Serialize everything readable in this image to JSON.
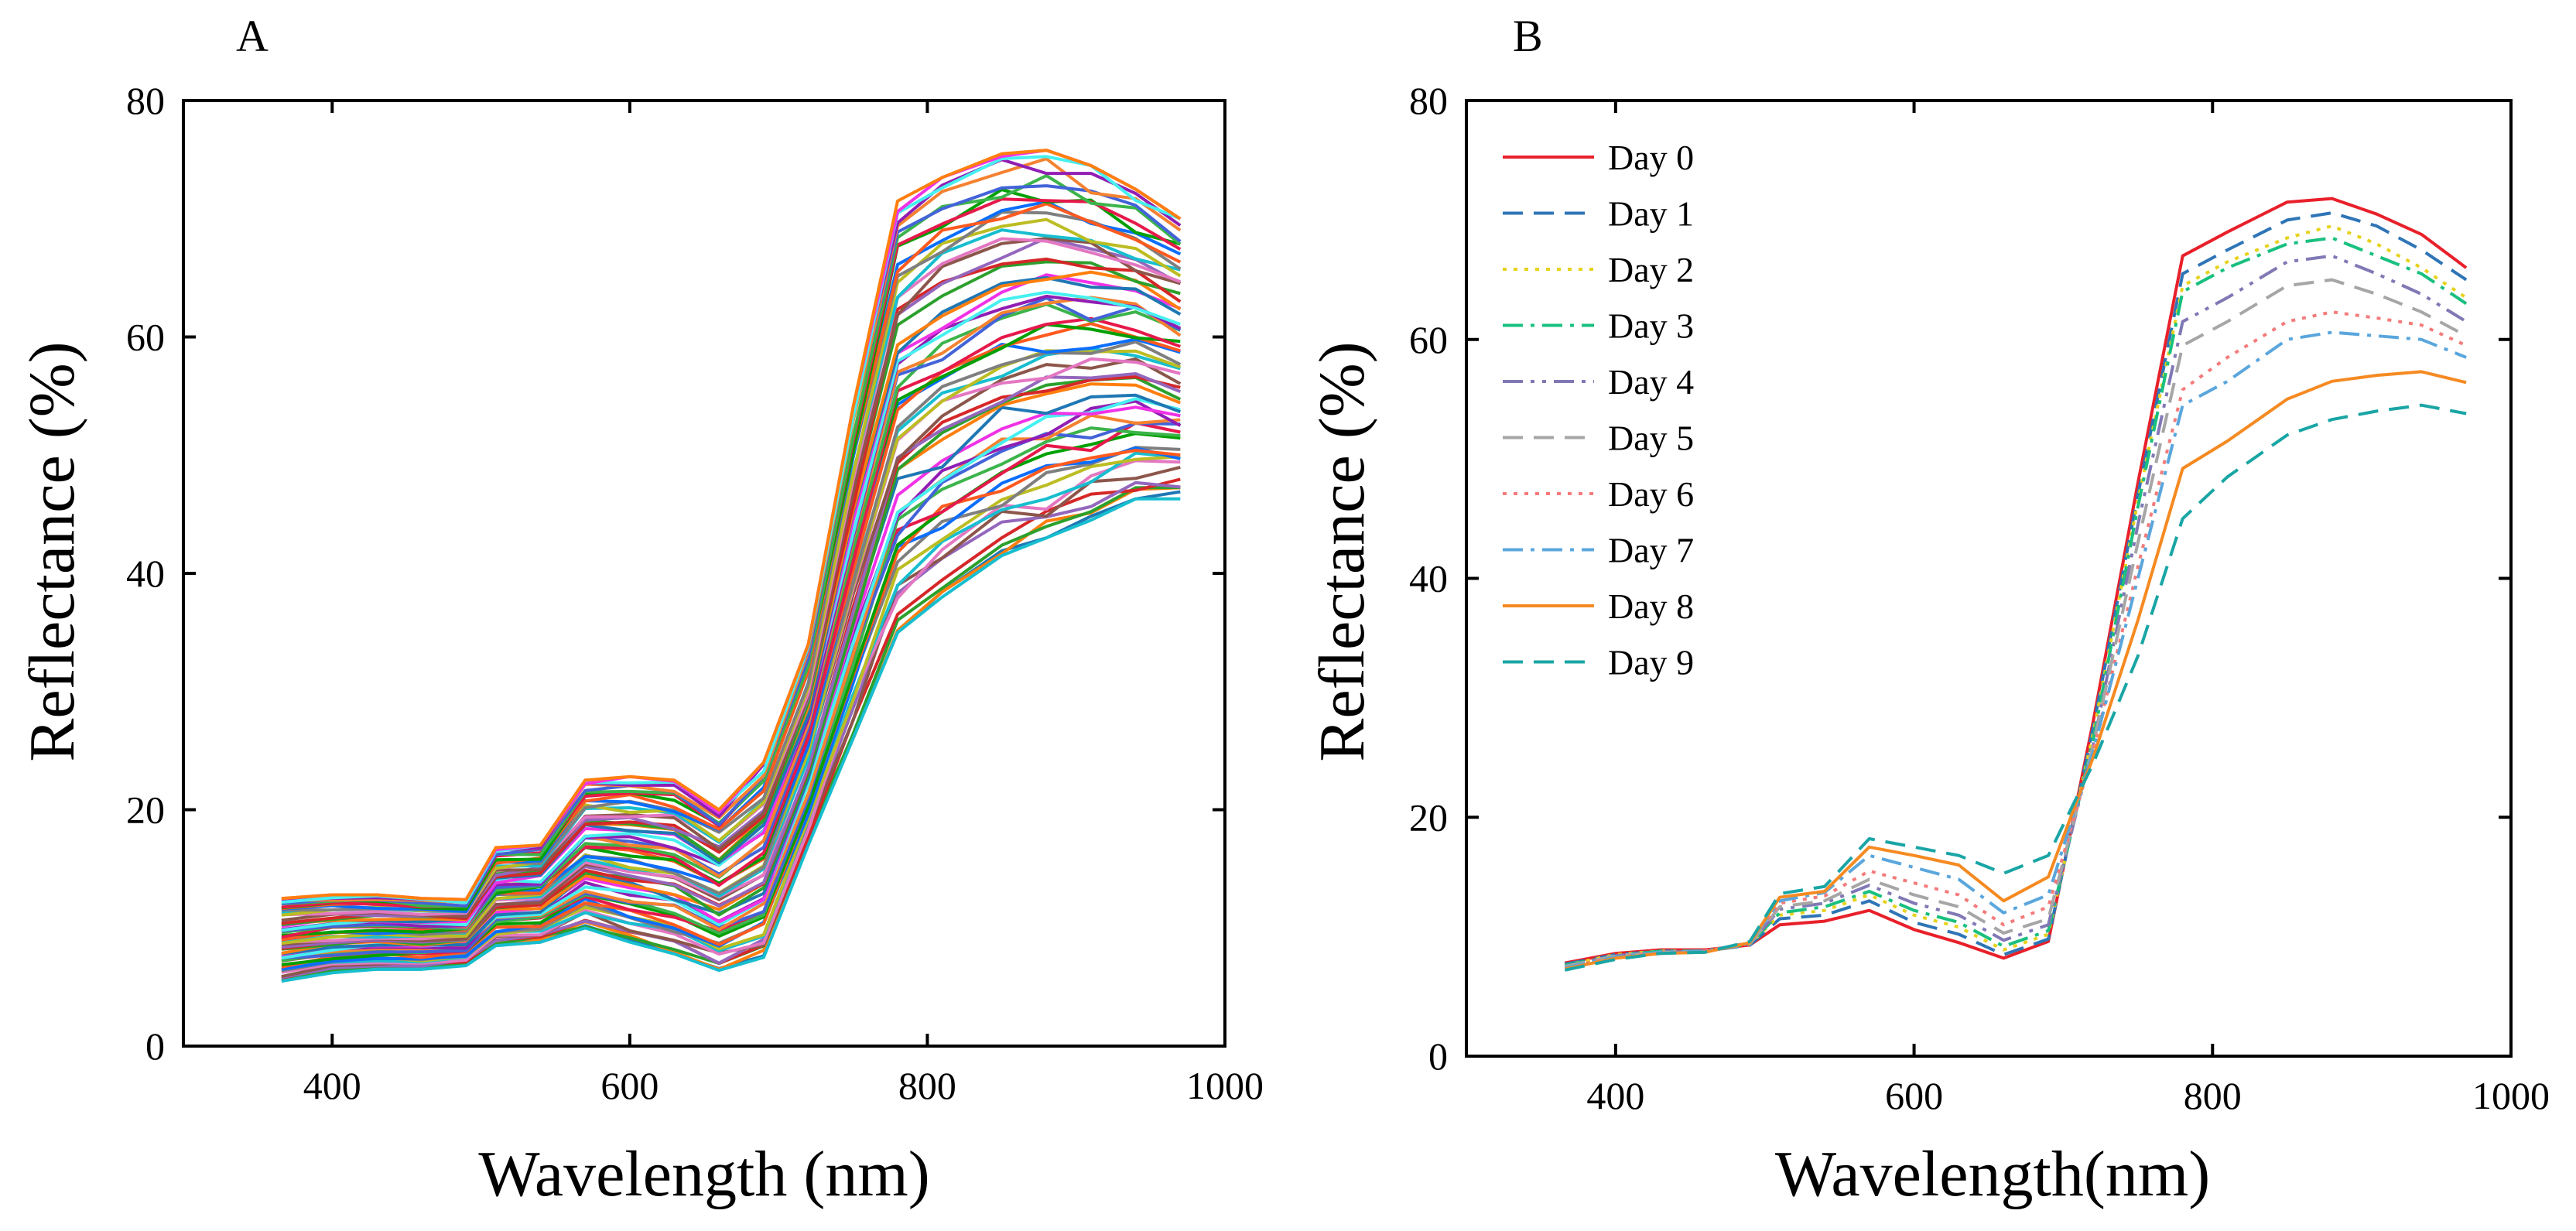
{
  "panel_a_letter": "A",
  "panel_b_letter": "B",
  "chart_data": [
    {
      "type": "line",
      "panel": "A",
      "xlabel": "Wavelength (nm)",
      "ylabel": "Reflectance (%)",
      "xlim": [
        300,
        1000
      ],
      "ylim": [
        0,
        80
      ],
      "xticks": [
        400,
        600,
        800,
        1000
      ],
      "yticks": [
        0,
        20,
        40,
        60,
        80
      ],
      "x": [
        366,
        400,
        430,
        460,
        490,
        510,
        540,
        570,
        600,
        630,
        660,
        690,
        720,
        750,
        780,
        810,
        850,
        880,
        910,
        940,
        970
      ],
      "envelope_upper": [
        12.5,
        12.8,
        12.8,
        12.5,
        12.4,
        16.8,
        17.0,
        22.5,
        22.8,
        22.5,
        20.0,
        24.0,
        34.0,
        54.0,
        71.5,
        73.5,
        75.5,
        75.8,
        74.5,
        72.5,
        70.0
      ],
      "envelope_lower": [
        5.5,
        6.2,
        6.5,
        6.5,
        6.8,
        8.5,
        8.8,
        10.0,
        8.8,
        7.8,
        6.4,
        7.5,
        17.0,
        26.0,
        35.0,
        38.0,
        41.5,
        43.0,
        44.5,
        46.3,
        46.3
      ],
      "series_count": 60,
      "palette": [
        "#1f77b4",
        "#ff7f0e",
        "#2ca02c",
        "#d62728",
        "#9467bd",
        "#8c564b",
        "#e377c2",
        "#17becf",
        "#bcbd22",
        "#7f7f7f",
        "#0b6efd",
        "#ff5a1f",
        "#00a000",
        "#e6194b",
        "#3cb44b",
        "#4363d8",
        "#f58231",
        "#911eb4",
        "#46f0f0",
        "#f032e6"
      ]
    },
    {
      "type": "line",
      "panel": "B",
      "xlabel": "Wavelength(nm)",
      "ylabel": "Reflectance (%)",
      "xlim": [
        300,
        1000
      ],
      "ylim": [
        0,
        80
      ],
      "xticks": [
        400,
        600,
        800,
        1000
      ],
      "yticks": [
        0,
        20,
        40,
        60,
        80
      ],
      "x": [
        366,
        400,
        430,
        460,
        490,
        510,
        540,
        570,
        600,
        630,
        660,
        690,
        720,
        750,
        780,
        810,
        850,
        880,
        910,
        940,
        970
      ],
      "legend_position": "top-left",
      "series": [
        {
          "name": "Day 0",
          "color": "#e8202a",
          "dash": "solid",
          "values": [
            7.8,
            8.6,
            8.9,
            8.9,
            9.3,
            11.0,
            11.3,
            12.2,
            10.6,
            9.5,
            8.2,
            9.6,
            28.0,
            48.0,
            67.0,
            69.0,
            71.5,
            71.8,
            70.5,
            68.8,
            66.0
          ]
        },
        {
          "name": "Day 1",
          "color": "#2e75b6",
          "dash": "dash",
          "values": [
            7.7,
            8.5,
            8.8,
            8.8,
            9.3,
            11.5,
            11.8,
            13.0,
            11.2,
            10.2,
            8.5,
            9.8,
            27.5,
            47.0,
            65.5,
            67.5,
            70.0,
            70.6,
            69.5,
            67.5,
            65.0
          ]
        },
        {
          "name": "Day 2",
          "color": "#e6d21c",
          "dash": "dot",
          "values": [
            7.6,
            8.5,
            8.8,
            8.8,
            9.4,
            11.8,
            12.2,
            13.5,
            11.8,
            10.8,
            8.9,
            10.2,
            27.0,
            46.5,
            64.5,
            66.5,
            68.5,
            69.5,
            68.0,
            66.0,
            63.5
          ]
        },
        {
          "name": "Day 3",
          "color": "#19c07f",
          "dash": "dashdot",
          "values": [
            7.6,
            8.4,
            8.8,
            8.8,
            9.4,
            12.0,
            12.5,
            13.8,
            12.2,
            11.2,
            9.2,
            10.5,
            26.5,
            46.0,
            64.0,
            66.0,
            68.0,
            68.5,
            67.0,
            65.5,
            63.0
          ]
        },
        {
          "name": "Day 4",
          "color": "#8079b5",
          "dash": "dashdotdot",
          "values": [
            7.5,
            8.4,
            8.7,
            8.8,
            9.4,
            12.3,
            12.8,
            14.3,
            12.8,
            11.8,
            9.7,
            11.0,
            26.0,
            44.5,
            61.5,
            63.5,
            66.5,
            67.0,
            65.5,
            63.8,
            61.5
          ]
        },
        {
          "name": "Day 5",
          "color": "#a6a6a6",
          "dash": "dash",
          "values": [
            7.5,
            8.4,
            8.7,
            8.8,
            9.4,
            12.5,
            13.0,
            14.8,
            13.5,
            12.5,
            10.3,
            11.5,
            26.0,
            43.0,
            59.5,
            61.5,
            64.5,
            65.0,
            63.8,
            62.3,
            60.3
          ]
        },
        {
          "name": "Day 6",
          "color": "#f47b7b",
          "dash": "dot",
          "values": [
            7.4,
            8.3,
            8.7,
            8.8,
            9.5,
            12.8,
            13.4,
            15.5,
            14.5,
            13.5,
            11.0,
            12.5,
            25.5,
            41.0,
            55.8,
            58.5,
            61.5,
            62.3,
            61.8,
            61.2,
            59.5
          ]
        },
        {
          "name": "Day 7",
          "color": "#5aa6dd",
          "dash": "dashdot",
          "values": [
            7.4,
            8.3,
            8.7,
            8.8,
            9.5,
            13.0,
            13.7,
            16.8,
            15.8,
            14.8,
            12.0,
            13.5,
            25.5,
            40.0,
            54.5,
            56.5,
            60.0,
            60.6,
            60.3,
            60.0,
            58.5
          ]
        },
        {
          "name": "Day 8",
          "color": "#f58a22",
          "dash": "solid",
          "values": [
            7.3,
            8.2,
            8.6,
            8.7,
            9.5,
            13.3,
            13.8,
            17.5,
            16.8,
            16.0,
            13.0,
            15.0,
            25.0,
            36.5,
            49.2,
            51.5,
            55.0,
            56.5,
            57.0,
            57.3,
            56.4
          ]
        },
        {
          "name": "Day 9",
          "color": "#1aa5a5",
          "dash": "dash",
          "values": [
            7.2,
            8.1,
            8.6,
            8.7,
            9.6,
            13.6,
            14.2,
            18.2,
            17.5,
            16.8,
            15.3,
            16.8,
            24.5,
            33.5,
            45.0,
            48.5,
            52.0,
            53.3,
            54.0,
            54.5,
            53.8
          ]
        }
      ]
    }
  ]
}
